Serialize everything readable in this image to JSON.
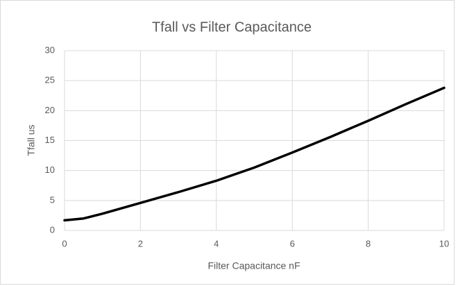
{
  "chart_data": {
    "type": "line",
    "title": "Tfall vs Filter Capacitance",
    "x_label": "Filter Capacitance nF",
    "y_label": "Tfall us",
    "x": [
      0,
      0.5,
      1,
      2,
      3,
      4,
      5,
      6,
      7,
      8,
      9,
      10
    ],
    "series": [
      {
        "name": "Tfall us",
        "color": "#000000",
        "values": [
          1.7,
          2.0,
          2.8,
          4.6,
          6.4,
          8.3,
          10.5,
          13.0,
          15.6,
          18.3,
          21.1,
          23.8
        ]
      }
    ],
    "xlim": [
      0,
      10
    ],
    "xticks": [
      0,
      2,
      4,
      6,
      8,
      10
    ],
    "ylim": [
      0,
      30
    ],
    "yticks": [
      0,
      5,
      10,
      15,
      20,
      25,
      30
    ],
    "grid": true
  }
}
